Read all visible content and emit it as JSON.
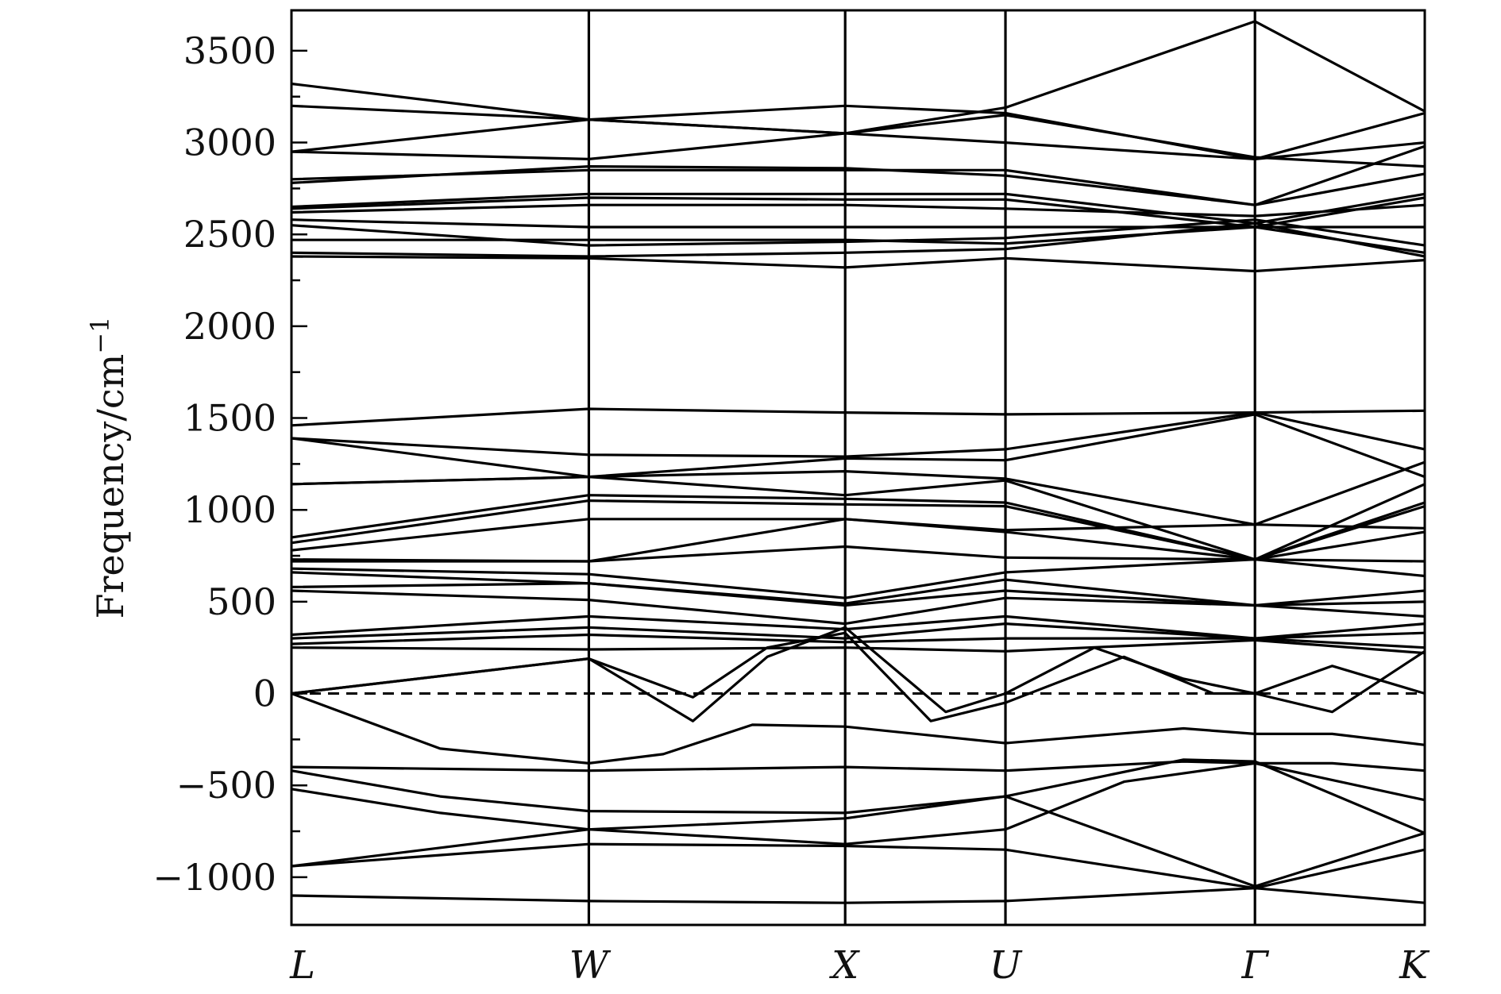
{
  "chart_data": {
    "type": "line",
    "title": "",
    "xlabel": "",
    "ylabel": "Frequency/cm",
    "ylabel_superscript": "−1",
    "ylim": [
      -1260,
      3720
    ],
    "yticks": [
      3500,
      3000,
      2500,
      2000,
      1500,
      1000,
      500,
      0,
      -500,
      -1000
    ],
    "ytick_labels": [
      "3500",
      "3000",
      "2500",
      "2000",
      "1500",
      "1000",
      "500",
      "0",
      "−500",
      "−1000"
    ],
    "y_minor_step": 250,
    "high_symmetry_points": [
      {
        "label": "L",
        "x": 0.0
      },
      {
        "label": "W",
        "x": 1.0
      },
      {
        "label": "X",
        "x": 1.862
      },
      {
        "label": "U",
        "x": 2.401
      },
      {
        "label": "Γ",
        "x": 3.24
      },
      {
        "label": "K",
        "x": 3.811
      }
    ],
    "xlim": [
      0,
      3.811
    ],
    "zero_line": {
      "y": 0,
      "style": "dashed"
    },
    "grid": false,
    "legend": "none",
    "line_color": "#000000",
    "series": [
      {
        "points": [
          [
            0,
            3320
          ],
          [
            1,
            3125
          ],
          [
            1.862,
            3050
          ],
          [
            2.401,
            3190
          ],
          [
            3.24,
            3660
          ],
          [
            3.811,
            3170
          ]
        ]
      },
      {
        "points": [
          [
            0,
            3200
          ],
          [
            1,
            3125
          ],
          [
            1.862,
            3200
          ],
          [
            2.401,
            3160
          ],
          [
            3.24,
            2910
          ],
          [
            3.811,
            3160
          ]
        ]
      },
      {
        "points": [
          [
            0,
            2950
          ],
          [
            1,
            3125
          ],
          [
            1.862,
            3050
          ],
          [
            2.401,
            3000
          ],
          [
            3.24,
            2910
          ],
          [
            3.811,
            3000
          ]
        ]
      },
      {
        "points": [
          [
            0,
            2950
          ],
          [
            1,
            2910
          ],
          [
            1.862,
            3050
          ],
          [
            2.401,
            3150
          ],
          [
            3.24,
            2920
          ],
          [
            3.811,
            2870
          ]
        ]
      },
      {
        "points": [
          [
            0,
            2800
          ],
          [
            1,
            2850
          ],
          [
            1.862,
            2850
          ],
          [
            2.401,
            2850
          ],
          [
            3.24,
            2660
          ],
          [
            3.811,
            2980
          ]
        ]
      },
      {
        "points": [
          [
            0,
            2780
          ],
          [
            1,
            2870
          ],
          [
            1.862,
            2860
          ],
          [
            2.401,
            2820
          ],
          [
            3.24,
            2660
          ],
          [
            3.811,
            2830
          ]
        ]
      },
      {
        "points": [
          [
            0,
            2650
          ],
          [
            1,
            2720
          ],
          [
            1.862,
            2720
          ],
          [
            2.401,
            2720
          ],
          [
            3.24,
            2560
          ],
          [
            3.811,
            2720
          ]
        ]
      },
      {
        "points": [
          [
            0,
            2640
          ],
          [
            1,
            2700
          ],
          [
            1.862,
            2690
          ],
          [
            2.401,
            2690
          ],
          [
            3.24,
            2540
          ],
          [
            3.811,
            2700
          ]
        ]
      },
      {
        "points": [
          [
            0,
            2620
          ],
          [
            1,
            2660
          ],
          [
            1.862,
            2660
          ],
          [
            2.401,
            2640
          ],
          [
            3.24,
            2600
          ],
          [
            3.811,
            2660
          ]
        ]
      },
      {
        "points": [
          [
            0,
            2580
          ],
          [
            1,
            2540
          ],
          [
            1.862,
            2540
          ],
          [
            2.401,
            2540
          ],
          [
            3.24,
            2540
          ],
          [
            3.811,
            2540
          ]
        ]
      },
      {
        "points": [
          [
            0,
            2550
          ],
          [
            1,
            2440
          ],
          [
            1.862,
            2460
          ],
          [
            2.401,
            2480
          ],
          [
            3.24,
            2580
          ],
          [
            3.811,
            2440
          ]
        ]
      },
      {
        "points": [
          [
            0,
            2470
          ],
          [
            1,
            2470
          ],
          [
            1.862,
            2470
          ],
          [
            2.401,
            2450
          ],
          [
            3.24,
            2540
          ],
          [
            3.811,
            2400
          ]
        ]
      },
      {
        "points": [
          [
            0,
            2400
          ],
          [
            1,
            2380
          ],
          [
            1.862,
            2400
          ],
          [
            2.401,
            2420
          ],
          [
            3.24,
            2560
          ],
          [
            3.811,
            2380
          ]
        ]
      },
      {
        "points": [
          [
            0,
            2380
          ],
          [
            1,
            2370
          ],
          [
            1.862,
            2320
          ],
          [
            2.401,
            2370
          ],
          [
            3.24,
            2300
          ],
          [
            3.811,
            2360
          ]
        ]
      },
      {
        "points": [
          [
            0,
            1460
          ],
          [
            1,
            1550
          ],
          [
            1.862,
            1530
          ],
          [
            2.401,
            1520
          ],
          [
            3.24,
            1530
          ],
          [
            3.811,
            1540
          ]
        ]
      },
      {
        "points": [
          [
            0,
            1390
          ],
          [
            1,
            1300
          ],
          [
            1.862,
            1290
          ],
          [
            2.401,
            1330
          ],
          [
            3.24,
            1530
          ],
          [
            3.811,
            1330
          ]
        ]
      },
      {
        "points": [
          [
            0,
            1390
          ],
          [
            1,
            1180
          ],
          [
            1.862,
            1280
          ],
          [
            2.401,
            1270
          ],
          [
            3.24,
            1520
          ],
          [
            3.811,
            1180
          ]
        ]
      },
      {
        "points": [
          [
            0,
            1140
          ],
          [
            1,
            1180
          ],
          [
            1.862,
            1210
          ],
          [
            2.401,
            1170
          ],
          [
            3.24,
            920
          ],
          [
            3.811,
            1260
          ]
        ]
      },
      {
        "points": [
          [
            0,
            1140
          ],
          [
            1,
            1180
          ],
          [
            1.862,
            1080
          ],
          [
            2.401,
            1160
          ],
          [
            3.24,
            730
          ],
          [
            3.811,
            1140
          ]
        ]
      },
      {
        "points": [
          [
            0,
            850
          ],
          [
            1,
            1080
          ],
          [
            1.862,
            1060
          ],
          [
            2.401,
            1040
          ],
          [
            3.24,
            730
          ],
          [
            3.811,
            1040
          ]
        ]
      },
      {
        "points": [
          [
            0,
            820
          ],
          [
            1,
            1050
          ],
          [
            1.862,
            1030
          ],
          [
            2.401,
            1020
          ],
          [
            3.24,
            730
          ],
          [
            3.811,
            1020
          ]
        ]
      },
      {
        "points": [
          [
            0,
            780
          ],
          [
            1,
            950
          ],
          [
            1.862,
            950
          ],
          [
            2.401,
            890
          ],
          [
            3.24,
            920
          ],
          [
            3.811,
            900
          ]
        ]
      },
      {
        "points": [
          [
            0,
            730
          ],
          [
            1,
            720
          ],
          [
            1.862,
            950
          ],
          [
            2.401,
            880
          ],
          [
            3.24,
            730
          ],
          [
            3.811,
            880
          ]
        ]
      },
      {
        "points": [
          [
            0,
            720
          ],
          [
            1,
            720
          ],
          [
            1.862,
            800
          ],
          [
            2.401,
            740
          ],
          [
            3.24,
            730
          ],
          [
            3.811,
            720
          ]
        ]
      },
      {
        "points": [
          [
            0,
            680
          ],
          [
            1,
            650
          ],
          [
            1.862,
            520
          ],
          [
            2.401,
            660
          ],
          [
            3.24,
            730
          ],
          [
            3.811,
            640
          ]
        ]
      },
      {
        "points": [
          [
            0,
            660
          ],
          [
            1,
            600
          ],
          [
            1.862,
            490
          ],
          [
            2.401,
            620
          ],
          [
            3.24,
            480
          ],
          [
            3.811,
            560
          ]
        ]
      },
      {
        "points": [
          [
            0,
            580
          ],
          [
            1,
            600
          ],
          [
            1.862,
            480
          ],
          [
            2.401,
            560
          ],
          [
            3.24,
            480
          ],
          [
            3.811,
            500
          ]
        ]
      },
      {
        "points": [
          [
            0,
            560
          ],
          [
            1,
            510
          ],
          [
            1.862,
            380
          ],
          [
            2.401,
            520
          ],
          [
            3.24,
            480
          ],
          [
            3.811,
            420
          ]
        ]
      },
      {
        "points": [
          [
            0,
            320
          ],
          [
            1,
            420
          ],
          [
            1.862,
            350
          ],
          [
            2.401,
            420
          ],
          [
            3.24,
            300
          ],
          [
            3.811,
            380
          ]
        ]
      },
      {
        "points": [
          [
            0,
            300
          ],
          [
            1,
            360
          ],
          [
            1.862,
            300
          ],
          [
            2.401,
            380
          ],
          [
            3.24,
            300
          ],
          [
            3.811,
            330
          ]
        ]
      },
      {
        "points": [
          [
            0,
            270
          ],
          [
            1,
            320
          ],
          [
            1.862,
            280
          ],
          [
            2.401,
            300
          ],
          [
            3.24,
            300
          ],
          [
            3.811,
            250
          ]
        ]
      },
      {
        "points": [
          [
            0,
            250
          ],
          [
            1,
            240
          ],
          [
            1.862,
            250
          ],
          [
            2.401,
            230
          ],
          [
            3.24,
            290
          ],
          [
            3.811,
            220
          ]
        ]
      },
      {
        "points": [
          [
            0,
            0
          ],
          [
            1,
            190
          ],
          [
            1.35,
            -150
          ],
          [
            1.6,
            200
          ],
          [
            1.862,
            360
          ],
          [
            2.2,
            -100
          ],
          [
            2.401,
            0
          ],
          [
            2.7,
            250
          ],
          [
            3.0,
            80
          ],
          [
            3.24,
            0
          ],
          [
            3.5,
            -100
          ],
          [
            3.811,
            230
          ]
        ]
      },
      {
        "points": [
          [
            0,
            0
          ],
          [
            1,
            190
          ],
          [
            1.35,
            -20
          ],
          [
            1.6,
            250
          ],
          [
            1.862,
            330
          ],
          [
            2.15,
            -150
          ],
          [
            2.401,
            -50
          ],
          [
            2.8,
            200
          ],
          [
            3.1,
            0
          ],
          [
            3.24,
            0
          ],
          [
            3.5,
            150
          ],
          [
            3.811,
            0
          ]
        ]
      },
      {
        "points": [
          [
            0,
            0
          ],
          [
            0.5,
            -300
          ],
          [
            1,
            -380
          ],
          [
            1.25,
            -330
          ],
          [
            1.55,
            -170
          ],
          [
            1.862,
            -180
          ],
          [
            2.401,
            -270
          ],
          [
            3.0,
            -190
          ],
          [
            3.24,
            -220
          ],
          [
            3.5,
            -220
          ],
          [
            3.811,
            -280
          ]
        ]
      },
      {
        "points": [
          [
            0,
            -400
          ],
          [
            1,
            -420
          ],
          [
            1.862,
            -400
          ],
          [
            2.401,
            -420
          ],
          [
            3.0,
            -370
          ],
          [
            3.24,
            -380
          ],
          [
            3.5,
            -380
          ],
          [
            3.811,
            -420
          ]
        ]
      },
      {
        "points": [
          [
            0,
            -420
          ],
          [
            0.5,
            -560
          ],
          [
            1,
            -640
          ],
          [
            1.862,
            -650
          ],
          [
            2.401,
            -560
          ],
          [
            3.0,
            -360
          ],
          [
            3.24,
            -370
          ],
          [
            3.811,
            -760
          ]
        ]
      },
      {
        "points": [
          [
            0,
            -520
          ],
          [
            0.5,
            -650
          ],
          [
            1,
            -740
          ],
          [
            1.862,
            -820
          ],
          [
            2.401,
            -740
          ],
          [
            2.8,
            -480
          ],
          [
            3.24,
            -380
          ],
          [
            3.811,
            -580
          ]
        ]
      },
      {
        "points": [
          [
            0,
            -940
          ],
          [
            1,
            -740
          ],
          [
            1.862,
            -680
          ],
          [
            2.401,
            -560
          ],
          [
            3.24,
            -1050
          ],
          [
            3.811,
            -760
          ]
        ]
      },
      {
        "points": [
          [
            0,
            -940
          ],
          [
            1,
            -820
          ],
          [
            1.862,
            -830
          ],
          [
            2.401,
            -850
          ],
          [
            3.24,
            -1060
          ],
          [
            3.811,
            -850
          ]
        ]
      },
      {
        "points": [
          [
            0,
            -1100
          ],
          [
            1,
            -1130
          ],
          [
            1.862,
            -1140
          ],
          [
            2.401,
            -1130
          ],
          [
            3.24,
            -1060
          ],
          [
            3.811,
            -1140
          ]
        ]
      }
    ]
  }
}
